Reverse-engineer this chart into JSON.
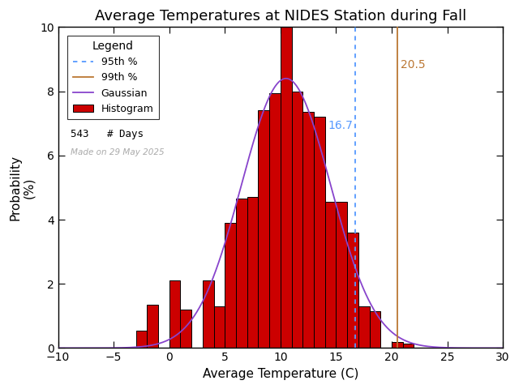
{
  "title": "Average Temperatures at NIDES Station during Fall",
  "xlabel": "Average Temperature (C)",
  "ylabel": "Probability\n(%)",
  "xlim": [
    -10,
    30
  ],
  "ylim": [
    0,
    10
  ],
  "yticks": [
    0,
    2,
    4,
    6,
    8,
    10
  ],
  "xticks": [
    -10,
    -5,
    0,
    5,
    10,
    15,
    20,
    25,
    30
  ],
  "bin_edges": [
    -3,
    -2,
    -1,
    0,
    1,
    2,
    3,
    4,
    5,
    6,
    7,
    8,
    9,
    10,
    11,
    12,
    13,
    14,
    15,
    16,
    17,
    18,
    19,
    20,
    21,
    22,
    23,
    24
  ],
  "bin_heights": [
    0.55,
    1.35,
    0.0,
    2.1,
    1.2,
    0.0,
    2.1,
    1.3,
    3.9,
    4.65,
    4.7,
    7.4,
    7.95,
    10.05,
    8.0,
    7.35,
    7.2,
    4.55,
    4.55,
    3.6,
    1.3,
    1.15,
    0.0,
    0.2,
    0.15,
    0.0,
    0.0
  ],
  "gauss_mean": 10.5,
  "gauss_std": 4.0,
  "gauss_amplitude": 8.4,
  "pct95": 16.7,
  "pct99": 20.5,
  "n_days": 543,
  "bar_color": "#cc0000",
  "bar_edgecolor": "#000000",
  "gauss_color": "#8844cc",
  "pct95_color": "#5599ff",
  "pct99_color": "#bb7733",
  "pct95_label": "95th %",
  "pct99_label": "99th %",
  "gauss_label": "Gaussian",
  "hist_label": "Histogram",
  "days_label": "# Days",
  "made_on": "Made on 29 May 2025",
  "made_on_color": "#aaaaaa",
  "legend_title": "Legend",
  "annotation_95_color": "#5599ff",
  "annotation_99_color": "#bb7733",
  "bg_color": "#ffffff",
  "title_fontsize": 13,
  "axis_fontsize": 11,
  "legend_fontsize": 9,
  "tick_fontsize": 10
}
